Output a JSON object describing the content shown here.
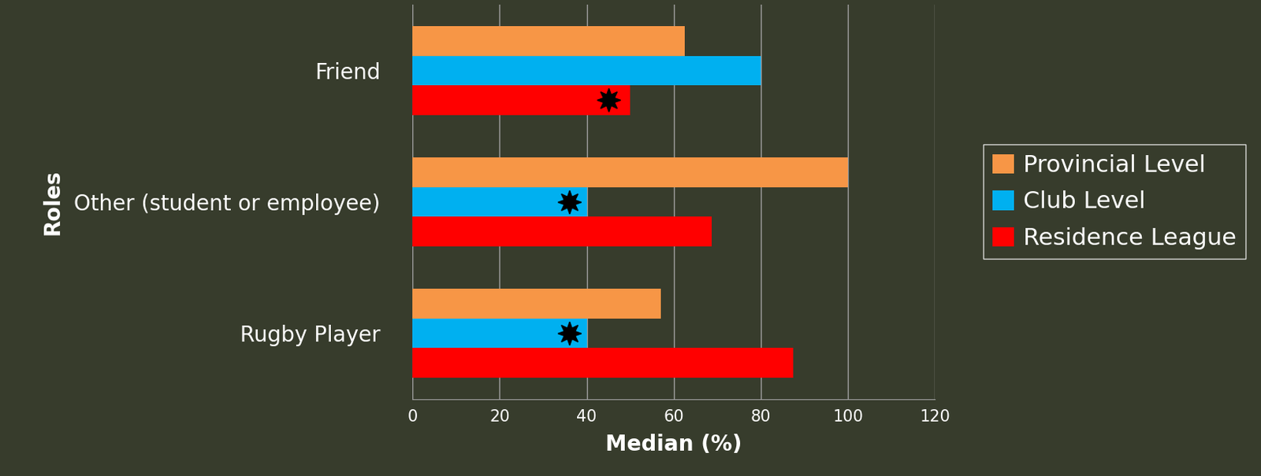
{
  "chart_data": {
    "type": "bar",
    "orientation": "horizontal",
    "x_label": "Median (%)",
    "y_label": "Roles",
    "categories": [
      "Friend",
      "Other (student or employee)",
      "Rugby Player"
    ],
    "series": [
      {
        "name": "Provincial Level",
        "color": "#F79646",
        "values": [
          62.5,
          100,
          57
        ],
        "highlight": [
          false,
          false,
          false
        ]
      },
      {
        "name": "Club Level",
        "color": "#00B0F0",
        "values": [
          80,
          40,
          40
        ],
        "highlight": [
          false,
          true,
          true
        ]
      },
      {
        "name": "Residence League",
        "color": "#FF0000",
        "values": [
          50,
          68.75,
          87.5
        ],
        "highlight": [
          true,
          false,
          false
        ]
      }
    ],
    "xlim": [
      0,
      120
    ],
    "xticks": [
      0,
      20,
      40,
      60,
      80,
      100,
      120
    ],
    "grid": true,
    "legend": "right"
  }
}
